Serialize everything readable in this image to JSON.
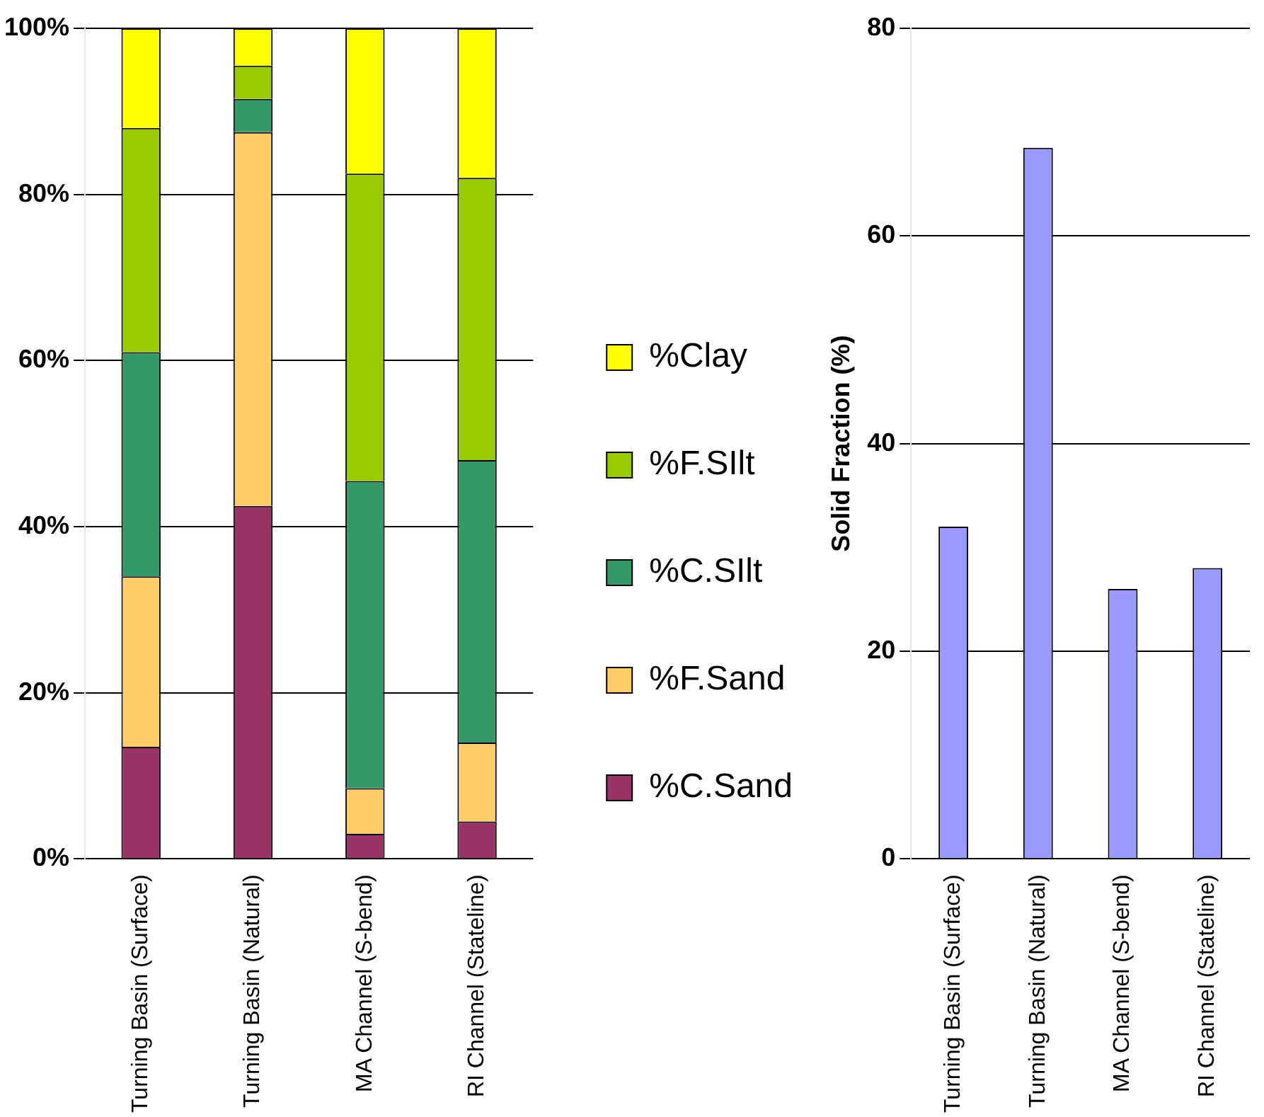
{
  "chart_data": [
    {
      "type": "bar",
      "stacked": true,
      "categories": [
        "Turning Basin (Surface)",
        "Turning Basin (Natural)",
        "MA Channel (S-bend)",
        "RI Channel (Stateline)"
      ],
      "series": [
        {
          "name": "%C.Sand",
          "color": "#993366",
          "values": [
            13.5,
            42.5,
            3,
            4.5
          ]
        },
        {
          "name": "%F.Sand",
          "color": "#ffcc66",
          "values": [
            20.5,
            45,
            5.5,
            9.5
          ]
        },
        {
          "name": "%C.SIlt",
          "color": "#339966",
          "values": [
            27,
            4,
            37,
            34
          ]
        },
        {
          "name": "%F.SIlt",
          "color": "#99cc00",
          "values": [
            27,
            4,
            37,
            34
          ]
        },
        {
          "name": "%Clay",
          "color": "#ffff00",
          "values": [
            12,
            4.5,
            17.5,
            18
          ]
        }
      ],
      "ylim": [
        0,
        100
      ],
      "yticks": [
        {
          "value": 0,
          "label": "0%"
        },
        {
          "value": 20,
          "label": "20%"
        },
        {
          "value": 40,
          "label": "40%"
        },
        {
          "value": 60,
          "label": "60%"
        },
        {
          "value": 80,
          "label": "80%"
        },
        {
          "value": 100,
          "label": "100%"
        }
      ],
      "grid": "y",
      "legend": "right"
    },
    {
      "type": "bar",
      "categories": [
        "Turning Basin (Surface)",
        "Turning Basin (Natural)",
        "MA Channel (S-bend)",
        "RI Channel (Stateline)"
      ],
      "values": [
        32,
        68.5,
        26,
        28
      ],
      "color": "#9999ff",
      "ylabel": "Solid Fraction (%)",
      "ylim": [
        0,
        80
      ],
      "yticks": [
        0,
        20,
        40,
        60,
        80
      ],
      "grid": "y"
    }
  ]
}
